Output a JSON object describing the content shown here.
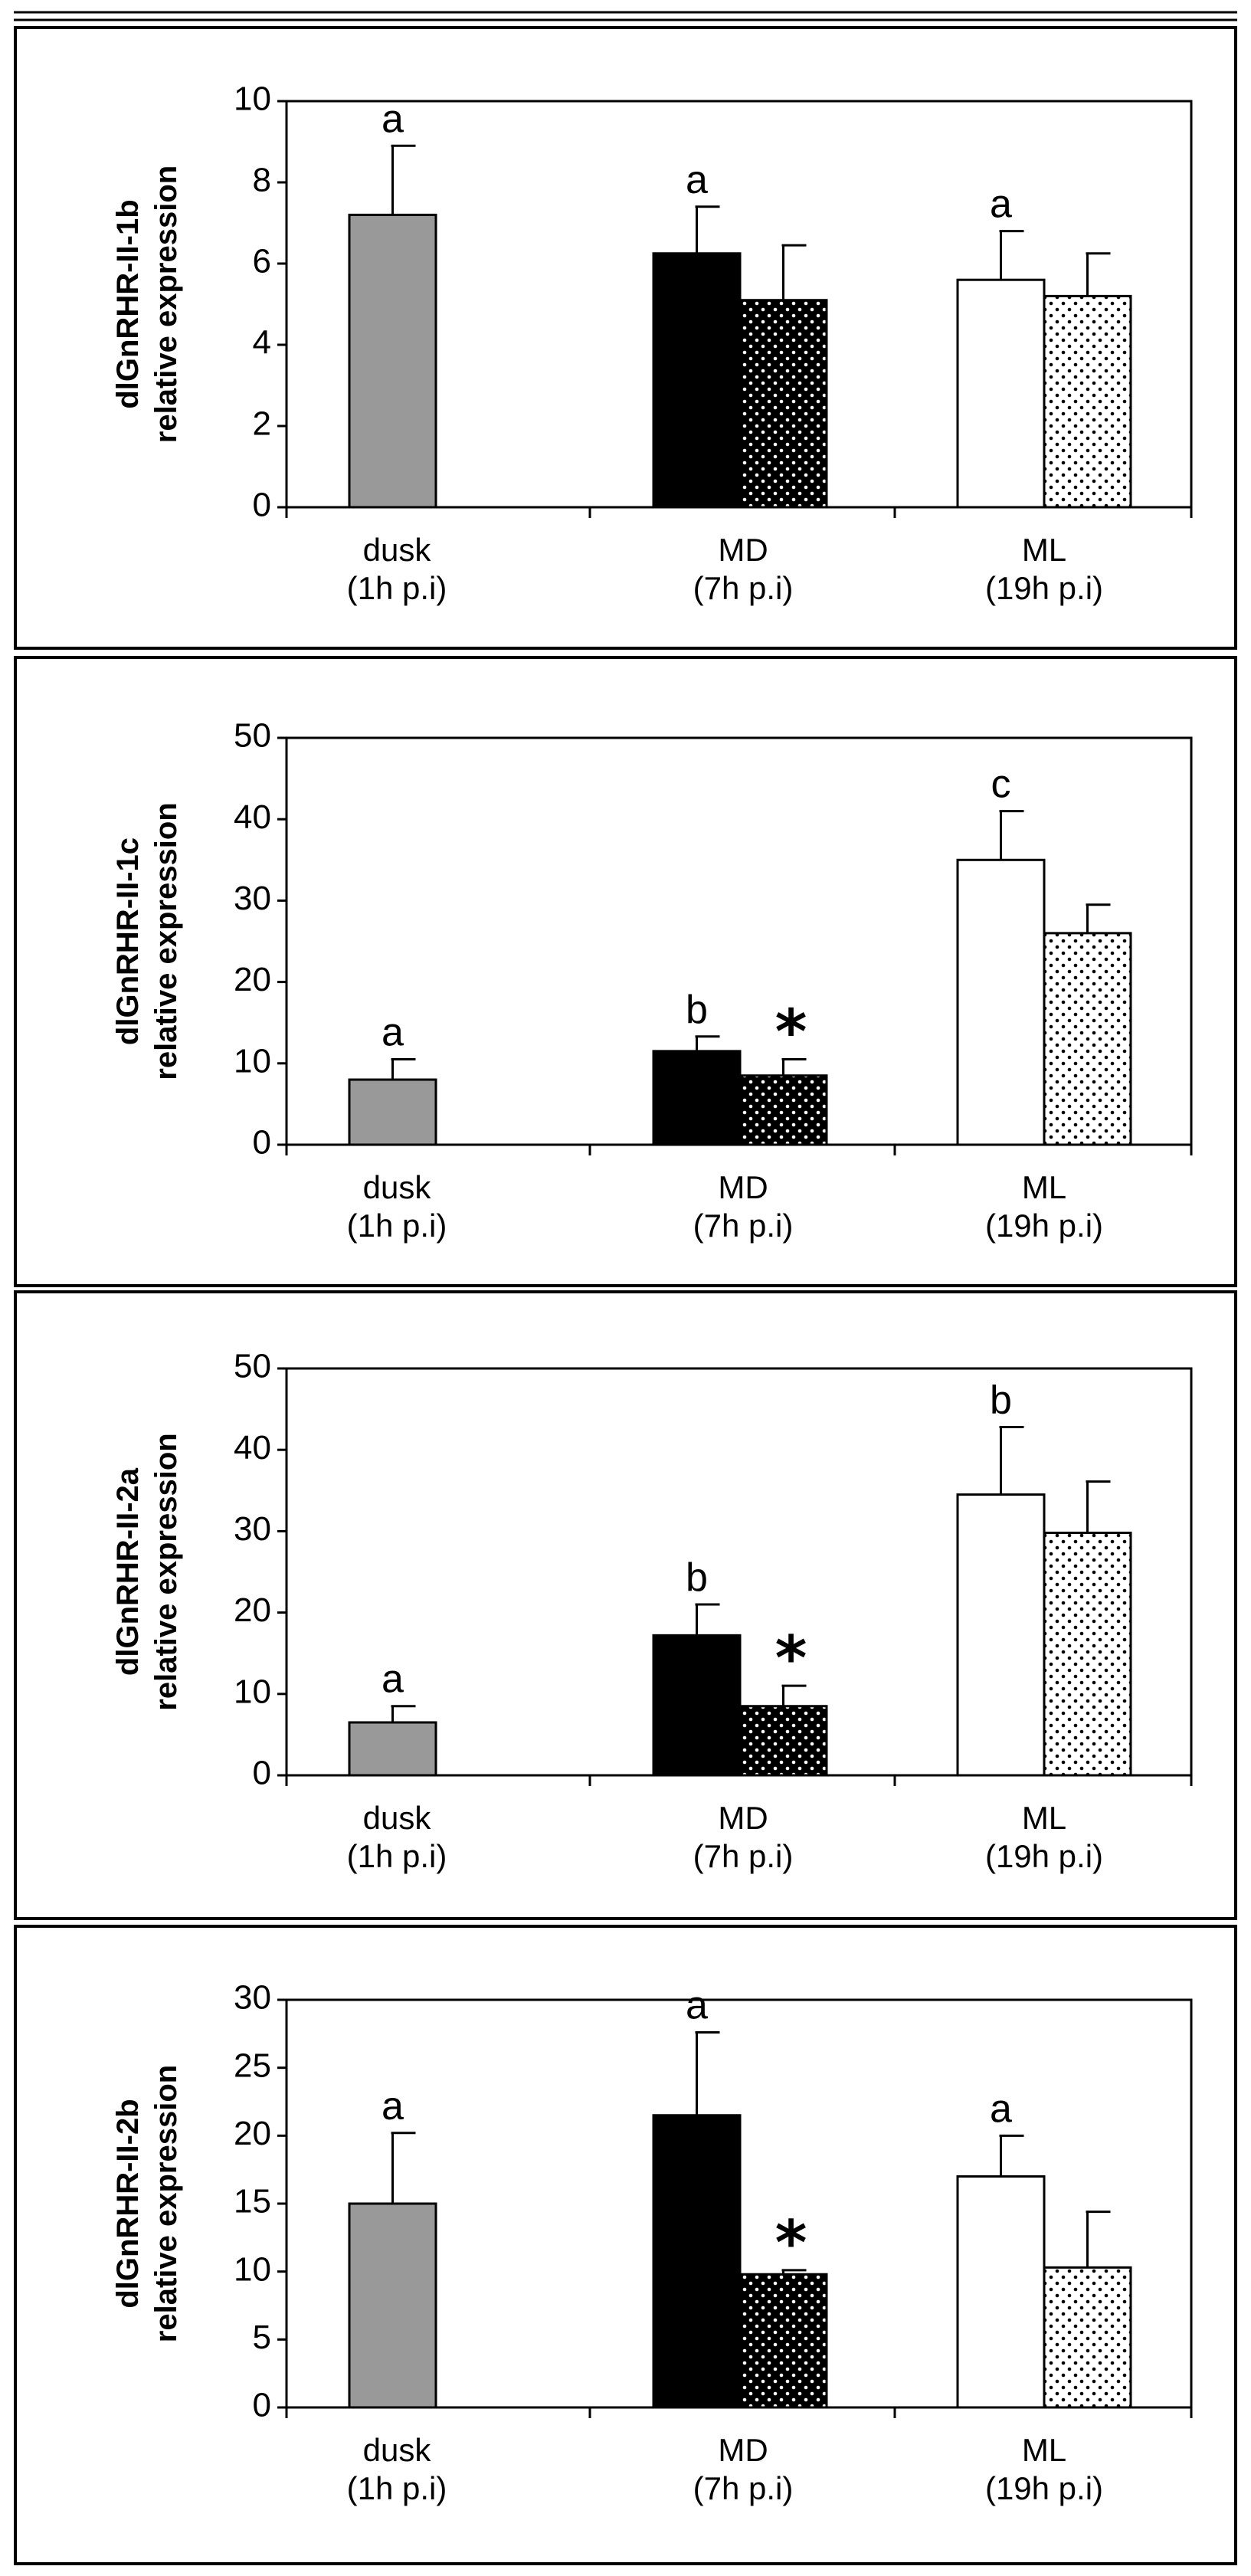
{
  "colors": {
    "dusk": "#999999",
    "solid_black": "#000000",
    "white": "#ffffff",
    "dotted_dark_bg": "#000000",
    "dotted_dark_dot": "#ffffff",
    "dotted_light_bg": "#ffffff",
    "dotted_light_dot": "#000000"
  },
  "chart_data": [
    {
      "type": "bar",
      "ylabel": [
        "dlGnRHR-II-1b",
        "relative expression"
      ],
      "ylim": [
        0,
        10
      ],
      "yticks": [
        "0",
        "2",
        "4",
        "6",
        "8",
        "10"
      ],
      "categories": [
        {
          "name": "dusk",
          "sub": "(1h p.i)"
        },
        {
          "name": "MD",
          "sub": "(7h p.i)"
        },
        {
          "name": "ML",
          "sub": "(19h p.i)"
        }
      ],
      "bars": [
        {
          "category": 0,
          "style": "gray",
          "value": 7.2,
          "error": 1.7,
          "letter": "a",
          "star": ""
        },
        {
          "category": 1,
          "style": "black",
          "value": 6.25,
          "error": 1.15,
          "letter": "a",
          "star": ""
        },
        {
          "category": 1,
          "style": "black-dotted",
          "value": 5.1,
          "error": 1.35,
          "letter": "",
          "star": ""
        },
        {
          "category": 2,
          "style": "white",
          "value": 5.6,
          "error": 1.2,
          "letter": "a",
          "star": ""
        },
        {
          "category": 2,
          "style": "white-dotted",
          "value": 5.2,
          "error": 1.05,
          "letter": "",
          "star": ""
        }
      ]
    },
    {
      "type": "bar",
      "ylabel": [
        "dlGnRHR-II-1c",
        "relative expression"
      ],
      "ylim": [
        0,
        50
      ],
      "yticks": [
        "0",
        "10",
        "20",
        "30",
        "40",
        "50"
      ],
      "categories": [
        {
          "name": "dusk",
          "sub": "(1h p.i)"
        },
        {
          "name": "MD",
          "sub": "(7h p.i)"
        },
        {
          "name": "ML",
          "sub": "(19h p.i)"
        }
      ],
      "bars": [
        {
          "category": 0,
          "style": "gray",
          "value": 8,
          "error": 2.5,
          "letter": "a",
          "star": ""
        },
        {
          "category": 1,
          "style": "black",
          "value": 11.5,
          "error": 1.8,
          "letter": "b",
          "star": ""
        },
        {
          "category": 1,
          "style": "black-dotted",
          "value": 8.5,
          "error": 2,
          "letter": "",
          "star": "*"
        },
        {
          "category": 2,
          "style": "white",
          "value": 35,
          "error": 6,
          "letter": "c",
          "star": ""
        },
        {
          "category": 2,
          "style": "white-dotted",
          "value": 26,
          "error": 3.5,
          "letter": "",
          "star": ""
        }
      ]
    },
    {
      "type": "bar",
      "ylabel": [
        "dlGnRHR-II-2a",
        "relative expression"
      ],
      "ylim": [
        0,
        50
      ],
      "yticks": [
        "0",
        "10",
        "20",
        "30",
        "40",
        "50"
      ],
      "categories": [
        {
          "name": "dusk",
          "sub": "(1h p.i)"
        },
        {
          "name": "MD",
          "sub": "(7h p.i)"
        },
        {
          "name": "ML",
          "sub": "(19h p.i)"
        }
      ],
      "bars": [
        {
          "category": 0,
          "style": "gray",
          "value": 6.5,
          "error": 2,
          "letter": "a",
          "star": ""
        },
        {
          "category": 1,
          "style": "black",
          "value": 17.2,
          "error": 3.8,
          "letter": "b",
          "star": ""
        },
        {
          "category": 1,
          "style": "black-dotted",
          "value": 8.5,
          "error": 2.5,
          "letter": "",
          "star": "*"
        },
        {
          "category": 2,
          "style": "white",
          "value": 34.5,
          "error": 8.3,
          "letter": "b",
          "star": ""
        },
        {
          "category": 2,
          "style": "white-dotted",
          "value": 29.8,
          "error": 6.3,
          "letter": "",
          "star": ""
        }
      ]
    },
    {
      "type": "bar",
      "ylabel": [
        "dlGnRHR-II-2b",
        "relative expression"
      ],
      "ylim": [
        0,
        30
      ],
      "yticks": [
        "0",
        "5",
        "10",
        "15",
        "20",
        "25",
        "30"
      ],
      "categories": [
        {
          "name": "dusk",
          "sub": "(1h p.i)"
        },
        {
          "name": "MD",
          "sub": "(7h p.i)"
        },
        {
          "name": "ML",
          "sub": "(19h p.i)"
        }
      ],
      "bars": [
        {
          "category": 0,
          "style": "gray",
          "value": 15,
          "error": 5.2,
          "letter": "a",
          "star": ""
        },
        {
          "category": 1,
          "style": "black",
          "value": 21.5,
          "error": 6.1,
          "letter": "a",
          "star": ""
        },
        {
          "category": 1,
          "style": "black-dotted",
          "value": 9.8,
          "error": 0.3,
          "letter": "",
          "star": "*"
        },
        {
          "category": 2,
          "style": "white",
          "value": 17,
          "error": 3,
          "letter": "a",
          "star": ""
        },
        {
          "category": 2,
          "style": "white-dotted",
          "value": 10.3,
          "error": 4.1,
          "letter": "",
          "star": ""
        }
      ]
    }
  ]
}
